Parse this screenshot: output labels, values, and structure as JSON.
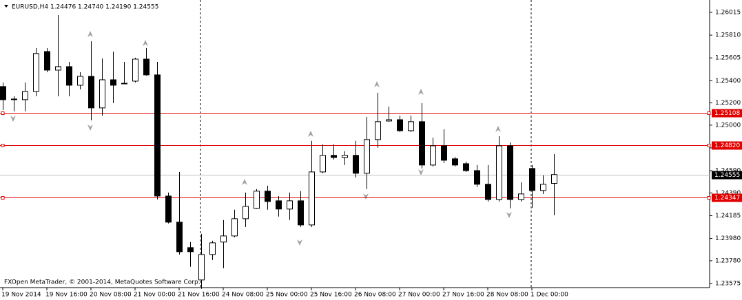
{
  "chart_data": {
    "type": "candlestick",
    "title": "EURUSD,H4  1.24476 1.24740 1.24190 1.24555",
    "watermark": "FXOpen MetaTrader, © 2001-2014, MetaQuotes Software Corp.",
    "categories": [
      "19 Nov 2014",
      null,
      null,
      null,
      "19 Nov 16:00",
      null,
      null,
      null,
      "20 Nov 08:00",
      null,
      null,
      null,
      "21 Nov 00:00",
      null,
      null,
      null,
      "21 Nov 16:00",
      null,
      null,
      null,
      "24 Nov 08:00",
      null,
      null,
      null,
      "25 Nov 00:00",
      null,
      null,
      null,
      "25 Nov 16:00",
      null,
      null,
      null,
      "26 Nov 08:00",
      null,
      null,
      null,
      "27 Nov 00:00",
      null,
      null,
      null,
      "27 Nov 16:00",
      null,
      null,
      null,
      "28 Nov 08:00",
      null,
      null,
      null,
      "1 Dec 00:00",
      null,
      null
    ],
    "ohlc": [
      [
        1.25347,
        1.25384,
        1.25136,
        1.25229
      ],
      [
        1.25229,
        1.2526,
        1.25124,
        1.25235
      ],
      [
        1.25229,
        1.25384,
        1.25124,
        1.25303
      ],
      [
        1.25303,
        1.25693,
        1.2526,
        1.25644
      ],
      [
        1.25662,
        1.25693,
        1.25477,
        1.25495
      ],
      [
        1.25495,
        1.2599,
        1.2526,
        1.25526
      ],
      [
        1.25526,
        1.25569,
        1.2526,
        1.25359
      ],
      [
        1.25359,
        1.25477,
        1.25322,
        1.25439
      ],
      [
        1.25439,
        1.25755,
        1.25043,
        1.25155
      ],
      [
        1.25155,
        1.256,
        1.25087,
        1.25408
      ],
      [
        1.25408,
        1.25662,
        1.25198,
        1.25359
      ],
      [
        1.25377,
        1.25569,
        1.25371,
        1.25371
      ],
      [
        1.25396,
        1.25607,
        1.25384,
        1.25594
      ],
      [
        1.25594,
        1.25693,
        1.25446,
        1.25452
      ],
      [
        1.25452,
        1.25569,
        1.24331,
        1.24362
      ],
      [
        1.24362,
        1.24393,
        1.24115,
        1.24127
      ],
      [
        1.24127,
        1.24579,
        1.23836,
        1.23861
      ],
      [
        1.23898,
        1.23948,
        1.23725,
        1.23861
      ],
      [
        1.23607,
        1.24022,
        1.23527,
        1.23836
      ],
      [
        1.23836,
        1.2396,
        1.23787,
        1.23941
      ],
      [
        1.23948,
        1.24146,
        1.23712,
        1.24003
      ],
      [
        1.24003,
        1.24239,
        1.23991,
        1.24158
      ],
      [
        1.24158,
        1.24393,
        1.24084,
        1.24269
      ],
      [
        1.24251,
        1.24424,
        1.24245,
        1.24406
      ],
      [
        1.24406,
        1.24455,
        1.24239,
        1.24313
      ],
      [
        1.24319,
        1.24362,
        1.24177,
        1.24245
      ],
      [
        1.24245,
        1.24393,
        1.24146,
        1.24319
      ],
      [
        1.24319,
        1.24406,
        1.24084,
        1.24102
      ],
      [
        1.24102,
        1.24858,
        1.24084,
        1.24579
      ],
      [
        1.24579,
        1.24827,
        1.24567,
        1.24728
      ],
      [
        1.24728,
        1.24827,
        1.2469,
        1.24709
      ],
      [
        1.24709,
        1.24765,
        1.24641,
        1.24728
      ],
      [
        1.24728,
        1.24858,
        1.24529,
        1.24567
      ],
      [
        1.24567,
        1.25074,
        1.24424,
        1.2487
      ],
      [
        1.2487,
        1.25291,
        1.24796,
        1.25031
      ],
      [
        1.25037,
        1.25167,
        1.25031,
        1.25049
      ],
      [
        1.25049,
        1.25087,
        1.24938,
        1.2495
      ],
      [
        1.2495,
        1.25087,
        1.24938,
        1.25031
      ],
      [
        1.25031,
        1.25198,
        1.2461,
        1.24641
      ],
      [
        1.24641,
        1.24888,
        1.24628,
        1.24814
      ],
      [
        1.24814,
        1.24963,
        1.24659,
        1.24684
      ],
      [
        1.24697,
        1.24715,
        1.24628,
        1.24641
      ],
      [
        1.24653,
        1.24672,
        1.24579,
        1.24591
      ],
      [
        1.24591,
        1.24641,
        1.24443,
        1.24468
      ],
      [
        1.24468,
        1.24641,
        1.24313,
        1.24331
      ],
      [
        1.24331,
        1.24901,
        1.24313,
        1.24814
      ],
      [
        1.24814,
        1.24845,
        1.24251,
        1.24331
      ],
      [
        1.24331,
        1.24486,
        1.24313,
        1.24381
      ],
      [
        1.2461,
        1.24641,
        1.24257,
        1.24412
      ],
      [
        1.24412,
        1.24548,
        1.24381,
        1.24468
      ],
      [
        1.24476,
        1.2474,
        1.2419,
        1.24555
      ]
    ],
    "up_color": "#ffffff",
    "down_color": "#000000",
    "ylim": [
      1.23538,
      1.26126
    ],
    "yticks": [
      1.26015,
      {
        "value": 1.2581,
        "label": "1.25810"
      },
      1.25605,
      {
        "value": 1.254,
        "label": "1.25400"
      },
      {
        "value": 1.252,
        "label": "1.25200"
      },
      {
        "value": 1.25,
        "label": "1.25000"
      },
      1.24795,
      {
        "value": 1.2459,
        "label": "1.24590"
      },
      {
        "value": 1.2439,
        "label": "1.24390"
      },
      1.24185,
      {
        "value": 1.2398,
        "label": "1.23980"
      },
      {
        "value": 1.2378,
        "label": "1.23780"
      },
      1.23575
    ],
    "levels": [
      1.25108,
      1.2482,
      1.24347
    ],
    "level_labels": [
      "1.25108",
      "1.24820",
      "1.24347"
    ],
    "level_color": "#e00000",
    "bid": 1.24555
  }
}
